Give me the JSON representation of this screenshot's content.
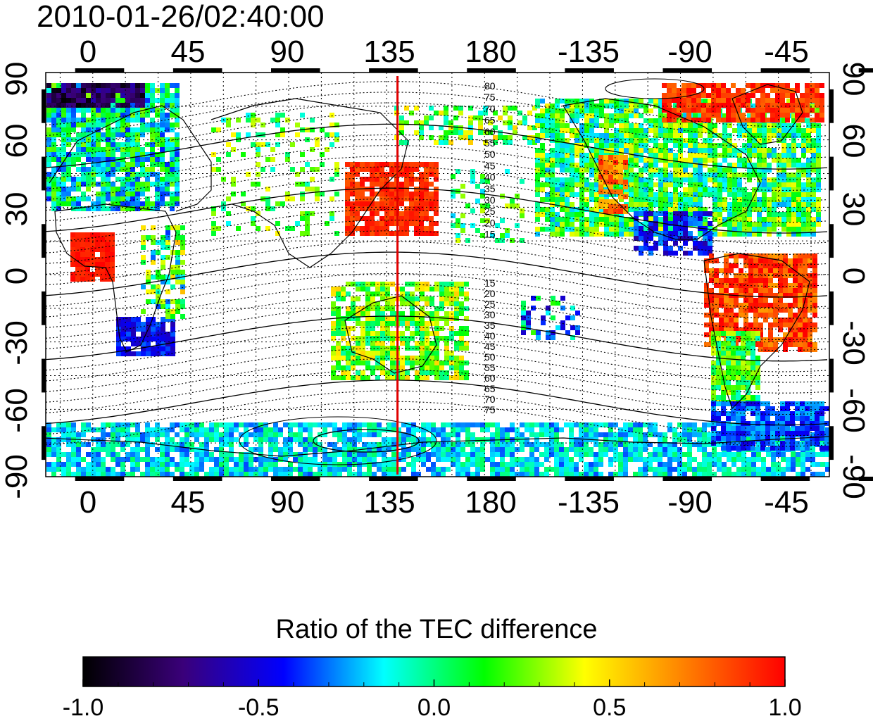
{
  "timestamp": "2010-01-26/02:40:00",
  "map": {
    "x_tick_labels": [
      "0",
      "45",
      "90",
      "135",
      "180",
      "-135",
      "-90",
      "-45"
    ],
    "y_tick_labels": [
      "90",
      "60",
      "30",
      "0",
      "-30",
      "-60",
      "-90"
    ],
    "magnetic_latitude_labels_north": [
      "80",
      "75",
      "70",
      "65",
      "60",
      "55",
      "50",
      "45",
      "40",
      "35",
      "30",
      "25",
      "20",
      "15"
    ],
    "magnetic_latitude_labels_south": [
      "15",
      "20",
      "25",
      "30",
      "35",
      "40",
      "45",
      "50",
      "55",
      "60",
      "65",
      "70",
      "75"
    ],
    "meridian_line_longitude": 140,
    "meridian_line_color": "#e00000",
    "background_color": "#ffffff"
  },
  "colorbar": {
    "title": "Ratio of the TEC difference",
    "tick_labels": [
      "-1.0",
      "-0.5",
      "0.0",
      "0.5",
      "1.0"
    ],
    "range": [
      -1.0,
      1.0
    ],
    "colors": [
      "#000000",
      "#3a007a",
      "#0000ff",
      "#00ffff",
      "#00ff00",
      "#ffff00",
      "#ff8000",
      "#ff0000"
    ]
  }
}
